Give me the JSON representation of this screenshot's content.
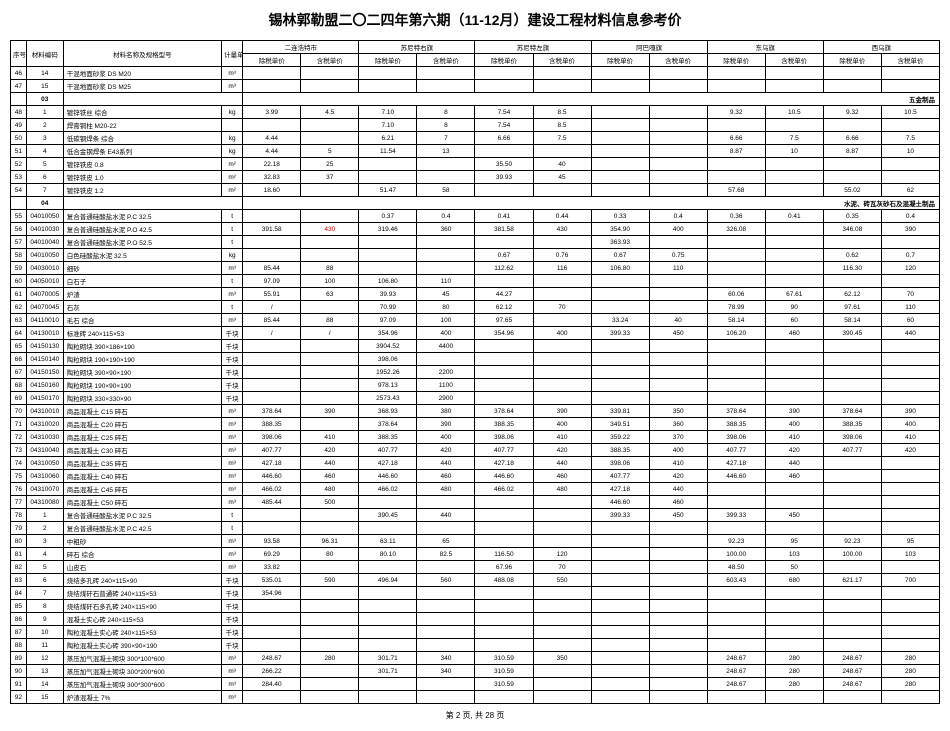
{
  "title": "锡林郭勒盟二〇二四年第六期（11-12月）建设工程材料信息参考价",
  "footer": "第 2 页, 共 28 页",
  "headers": {
    "seq": "序号",
    "code": "材料编码",
    "name": "材料名称及规格型号",
    "unit": "计量单位",
    "regions": [
      "二连浩特市",
      "苏尼特右旗",
      "苏尼特左旗",
      "阿巴嘎旗",
      "东乌旗",
      "西乌旗"
    ],
    "sub": [
      "除税单价",
      "含税单价"
    ]
  },
  "sections": [
    {
      "type": "row",
      "seq": "46",
      "code": "14",
      "name": "干混地面砂浆 DS M20",
      "unit": "m³",
      "v": [
        "",
        "",
        "",
        "",
        "",
        "",
        "",
        "",
        "",
        "",
        "",
        ""
      ]
    },
    {
      "type": "row",
      "seq": "47",
      "code": "15",
      "name": "干混地面砂浆 DS M25",
      "unit": "m³",
      "v": [
        "",
        "",
        "",
        "",
        "",
        "",
        "",
        "",
        "",
        "",
        "",
        ""
      ]
    },
    {
      "type": "section",
      "code": "03",
      "label": "五金制品"
    },
    {
      "type": "row",
      "seq": "48",
      "code": "1",
      "name": "镀锌铁丝 综合",
      "unit": "kg",
      "v": [
        "3.99",
        "4.5",
        "7.10",
        "8",
        "7.54",
        "8.5",
        "",
        "",
        "9.32",
        "10.5",
        "9.32",
        "10.5"
      ]
    },
    {
      "type": "row",
      "seq": "49",
      "code": "2",
      "name": "焊膏铜柱 M20-22",
      "unit": "",
      "v": [
        "",
        "",
        "7.10",
        "8",
        "7.54",
        "8.5",
        "",
        "",
        "",
        "",
        "",
        ""
      ]
    },
    {
      "type": "row",
      "seq": "50",
      "code": "3",
      "name": "低碳钢焊条 综合",
      "unit": "kg",
      "v": [
        "4.44",
        "",
        "6.21",
        "7",
        "6.66",
        "7.5",
        "",
        "",
        "6.66",
        "7.5",
        "6.66",
        "7.5"
      ]
    },
    {
      "type": "row",
      "seq": "51",
      "code": "4",
      "name": "低合金钢焊条 E43系列",
      "unit": "kg",
      "v": [
        "4.44",
        "5",
        "11.54",
        "13",
        "",
        "",
        "",
        "",
        "8.87",
        "10",
        "8.87",
        "10"
      ]
    },
    {
      "type": "row",
      "seq": "52",
      "code": "5",
      "name": "镀锌铁皮 0.8",
      "unit": "m²",
      "v": [
        "22.18",
        "25",
        "",
        "",
        "35.50",
        "40",
        "",
        "",
        "",
        "",
        "",
        ""
      ]
    },
    {
      "type": "row",
      "seq": "53",
      "code": "6",
      "name": "镀锌铁皮 1.0",
      "unit": "m²",
      "v": [
        "32.83",
        "37",
        "",
        "",
        "39.93",
        "45",
        "",
        "",
        "",
        "",
        "",
        ""
      ]
    },
    {
      "type": "row",
      "seq": "54",
      "code": "7",
      "name": "镀锌铁皮 1.2",
      "unit": "m²",
      "v": [
        "18.60",
        "",
        "51.47",
        "58",
        "",
        "",
        "",
        "",
        "57.68",
        "",
        "55.02",
        "62"
      ]
    },
    {
      "type": "section",
      "code": "04",
      "label": "水泥、砖瓦灰砂石及混凝土制品"
    },
    {
      "type": "row",
      "seq": "55",
      "code": "04010050",
      "name": "复合普通硅酸盐水泥 P.C 32.5",
      "unit": "t",
      "v": [
        "",
        "",
        "0.37",
        "0.4",
        "0.41",
        "0.44",
        "0.33",
        "0.4",
        "0.36",
        "0.41",
        "0.35",
        "0.4"
      ]
    },
    {
      "type": "row",
      "seq": "56",
      "code": "04010030",
      "name": "复合普通硅酸盐水泥 P.O 42.5",
      "unit": "t",
      "v": [
        "391.58",
        "430",
        "319.46",
        "360",
        "381.58",
        "430",
        "354.90",
        "400",
        "326.08",
        "",
        "346.08",
        "390",
        "red:1"
      ]
    },
    {
      "type": "row",
      "seq": "57",
      "code": "04010040",
      "name": "复合普通硅酸盐水泥 P.O 52.5",
      "unit": "t",
      "v": [
        "",
        "",
        "",
        "",
        "",
        "",
        "363.93",
        "",
        "",
        "",
        "",
        ""
      ]
    },
    {
      "type": "row",
      "seq": "58",
      "code": "04010050",
      "name": "白色硅酸盐水泥 32.5",
      "unit": "kg",
      "v": [
        "",
        "",
        "",
        "",
        "0.67",
        "0.76",
        "0.67",
        "0.75",
        "",
        "",
        "0.62",
        "0.7"
      ]
    },
    {
      "type": "row",
      "seq": "59",
      "code": "04030010",
      "name": "细砂",
      "unit": "m³",
      "v": [
        "85.44",
        "88",
        "",
        "",
        "112.62",
        "116",
        "106.80",
        "110",
        "",
        "",
        "116.30",
        "120"
      ]
    },
    {
      "type": "row",
      "seq": "60",
      "code": "04050010",
      "name": "白石子",
      "unit": "t",
      "v": [
        "97.09",
        "100",
        "106.80",
        "110",
        "",
        "",
        "",
        "",
        "",
        "",
        "",
        ""
      ]
    },
    {
      "type": "row",
      "seq": "61",
      "code": "04070005",
      "name": "炉渣",
      "unit": "m³",
      "v": [
        "55.91",
        "63",
        "39.93",
        "45",
        "44.27",
        "",
        "",
        "",
        "60.06",
        "67.61",
        "62.12",
        "70"
      ]
    },
    {
      "type": "row",
      "seq": "62",
      "code": "04070045",
      "name": "石灰",
      "unit": "t",
      "v": [
        "/",
        "",
        "70.99",
        "80",
        "62.12",
        "70",
        "",
        "",
        "78.99",
        "90",
        "97.61",
        "110"
      ]
    },
    {
      "type": "row",
      "seq": "63",
      "code": "04110010",
      "name": "毛石 综合",
      "unit": "m³",
      "v": [
        "85.44",
        "88",
        "97.09",
        "100",
        "97.65",
        "",
        "33.24",
        "40",
        "58.14",
        "60",
        "58.14",
        "60"
      ]
    },
    {
      "type": "row",
      "seq": "64",
      "code": "04130010",
      "name": "标准砖 240×115×53",
      "unit": "千块",
      "v": [
        "/",
        "/",
        "354.96",
        "400",
        "354.96",
        "400",
        "399.33",
        "450",
        "106.20",
        "460",
        "390.45",
        "440"
      ]
    },
    {
      "type": "row",
      "seq": "65",
      "code": "04150130",
      "name": "陶粒砌块 390×186×190",
      "unit": "千块",
      "v": [
        "",
        "",
        "3904.52",
        "4400",
        "",
        "",
        "",
        "",
        "",
        "",
        "",
        ""
      ]
    },
    {
      "type": "row",
      "seq": "66",
      "code": "04150140",
      "name": "陶粒砌块 190×190×190",
      "unit": "千块",
      "v": [
        "",
        "",
        "398.06",
        "",
        "",
        "",
        "",
        "",
        "",
        "",
        "",
        ""
      ]
    },
    {
      "type": "row",
      "seq": "67",
      "code": "04150150",
      "name": "陶粒砌块 390×90×190",
      "unit": "千块",
      "v": [
        "",
        "",
        "1952.26",
        "2200",
        "",
        "",
        "",
        "",
        "",
        "",
        "",
        ""
      ]
    },
    {
      "type": "row",
      "seq": "68",
      "code": "04150160",
      "name": "陶粒砌块 190×90×190",
      "unit": "千块",
      "v": [
        "",
        "",
        "978.13",
        "1100",
        "",
        "",
        "",
        "",
        "",
        "",
        "",
        ""
      ]
    },
    {
      "type": "row",
      "seq": "69",
      "code": "04150170",
      "name": "陶粒砌块 330×330×90",
      "unit": "千块",
      "v": [
        "",
        "",
        "2573.43",
        "2900",
        "",
        "",
        "",
        "",
        "",
        "",
        "",
        ""
      ]
    },
    {
      "type": "row",
      "seq": "70",
      "code": "04310010",
      "name": "商品混凝土 C15 碎石",
      "unit": "m³",
      "v": [
        "378.64",
        "390",
        "368.93",
        "380",
        "378.64",
        "390",
        "339.81",
        "350",
        "378.64",
        "390",
        "378.64",
        "390"
      ]
    },
    {
      "type": "row",
      "seq": "71",
      "code": "04310020",
      "name": "商品混凝土 C20 碎石",
      "unit": "m³",
      "v": [
        "388.35",
        "",
        "378.64",
        "390",
        "388.35",
        "400",
        "349.51",
        "360",
        "388.35",
        "400",
        "388.35",
        "400"
      ]
    },
    {
      "type": "row",
      "seq": "72",
      "code": "04310030",
      "name": "商品混凝土 C25 碎石",
      "unit": "m³",
      "v": [
        "398.06",
        "410",
        "388.35",
        "400",
        "398.06",
        "410",
        "359.22",
        "370",
        "398.06",
        "410",
        "398.06",
        "410"
      ]
    },
    {
      "type": "row",
      "seq": "73",
      "code": "04310040",
      "name": "商品混凝土 C30 碎石",
      "unit": "m³",
      "v": [
        "407.77",
        "420",
        "407.77",
        "420",
        "407.77",
        "420",
        "388.35",
        "400",
        "407.77",
        "420",
        "407.77",
        "420"
      ]
    },
    {
      "type": "row",
      "seq": "74",
      "code": "04310050",
      "name": "商品混凝土 C35 碎石",
      "unit": "m³",
      "v": [
        "427.18",
        "440",
        "427.18",
        "440",
        "427.18",
        "440",
        "398.06",
        "410",
        "427.18",
        "440",
        "",
        ""
      ]
    },
    {
      "type": "row",
      "seq": "75",
      "code": "04310060",
      "name": "商品混凝土 C40 碎石",
      "unit": "m³",
      "v": [
        "446.60",
        "460",
        "446.60",
        "460",
        "446.60",
        "460",
        "407.77",
        "420",
        "446.60",
        "460",
        "",
        ""
      ]
    },
    {
      "type": "row",
      "seq": "76",
      "code": "04310070",
      "name": "商品混凝土 C45 碎石",
      "unit": "m³",
      "v": [
        "466.02",
        "480",
        "466.02",
        "480",
        "466.02",
        "480",
        "427.18",
        "440",
        "",
        "",
        "",
        ""
      ]
    },
    {
      "type": "row",
      "seq": "77",
      "code": "04310080",
      "name": "商品混凝土 C50 碎石",
      "unit": "m³",
      "v": [
        "485.44",
        "500",
        "",
        "",
        "",
        "",
        "446.60",
        "460",
        "",
        "",
        "",
        ""
      ]
    },
    {
      "type": "row",
      "seq": "78",
      "code": "1",
      "name": "复合普通硅酸盐水泥 P.C 32.5",
      "unit": "t",
      "v": [
        "",
        "",
        "390.45",
        "440",
        "",
        "",
        "399.33",
        "450",
        "399.33",
        "450",
        "",
        ""
      ]
    },
    {
      "type": "row",
      "seq": "79",
      "code": "2",
      "name": "复合普通硅酸盐水泥 P.C 42.5",
      "unit": "t",
      "v": [
        "",
        "",
        "",
        "",
        "",
        "",
        "",
        "",
        "",
        "",
        "",
        ""
      ]
    },
    {
      "type": "row",
      "seq": "80",
      "code": "3",
      "name": "中粗砂",
      "unit": "m³",
      "v": [
        "93.58",
        "96.31",
        "63.11",
        "65",
        "",
        "",
        "",
        "",
        "92.23",
        "95",
        "92.23",
        "95"
      ]
    },
    {
      "type": "row",
      "seq": "81",
      "code": "4",
      "name": "碎石 综合",
      "unit": "m³",
      "v": [
        "69.29",
        "80",
        "80.10",
        "82.5",
        "116.50",
        "120",
        "",
        "",
        "100.00",
        "103",
        "100.00",
        "103"
      ]
    },
    {
      "type": "row",
      "seq": "82",
      "code": "5",
      "name": "山皮石",
      "unit": "m³",
      "v": [
        "33.82",
        "",
        "",
        "",
        "67.96",
        "70",
        "",
        "",
        "48.50",
        "50",
        "",
        ""
      ]
    },
    {
      "type": "row",
      "seq": "83",
      "code": "6",
      "name": "烧结多孔砖 240×115×90",
      "unit": "千块",
      "v": [
        "535.01",
        "590",
        "496.94",
        "560",
        "488.08",
        "550",
        "",
        "",
        "603.43",
        "680",
        "621.17",
        "700"
      ]
    },
    {
      "type": "row",
      "seq": "84",
      "code": "7",
      "name": "烧结煤矸石普通砖 240×115×53",
      "unit": "千块",
      "v": [
        "354.96",
        "",
        "",
        "",
        "",
        "",
        "",
        "",
        "",
        "",
        "",
        ""
      ]
    },
    {
      "type": "row",
      "seq": "85",
      "code": "8",
      "name": "烧结煤矸石多孔砖 240×115×90",
      "unit": "千块",
      "v": [
        "",
        "",
        "",
        "",
        "",
        "",
        "",
        "",
        "",
        "",
        "",
        ""
      ]
    },
    {
      "type": "row",
      "seq": "86",
      "code": "9",
      "name": "混凝土实心砖 240×115×53",
      "unit": "千块",
      "v": [
        "",
        "",
        "",
        "",
        "",
        "",
        "",
        "",
        "",
        "",
        "",
        ""
      ]
    },
    {
      "type": "row",
      "seq": "87",
      "code": "10",
      "name": "陶粒混凝土实心砖 240×115×53",
      "unit": "千块",
      "v": [
        "",
        "",
        "",
        "",
        "",
        "",
        "",
        "",
        "",
        "",
        "",
        ""
      ]
    },
    {
      "type": "row",
      "seq": "88",
      "code": "11",
      "name": "陶粒混凝土实心砖 390×90×190",
      "unit": "千块",
      "v": [
        "",
        "",
        "",
        "",
        "",
        "",
        "",
        "",
        "",
        "",
        "",
        ""
      ]
    },
    {
      "type": "row",
      "seq": "89",
      "code": "12",
      "name": "蒸压加气混凝土砌块 300*100*600",
      "unit": "m³",
      "v": [
        "248.67",
        "280",
        "301.71",
        "340",
        "310.59",
        "350",
        "",
        "",
        "248.67",
        "280",
        "248.67",
        "280"
      ]
    },
    {
      "type": "row",
      "seq": "90",
      "code": "13",
      "name": "蒸压加气混凝土砌块 300*200*600",
      "unit": "m³",
      "v": [
        "266.22",
        "",
        "301.71",
        "340",
        "310.59",
        "",
        "",
        "",
        "248.67",
        "280",
        "248.67",
        "280"
      ]
    },
    {
      "type": "row",
      "seq": "91",
      "code": "14",
      "name": "蒸压加气混凝土砌块 300*300*600",
      "unit": "m³",
      "v": [
        "284.40",
        "",
        "",
        "",
        "310.59",
        "",
        "",
        "",
        "248.67",
        "280",
        "248.67",
        "280"
      ]
    },
    {
      "type": "row",
      "seq": "92",
      "code": "15",
      "name": "炉渣混凝土 7%",
      "unit": "m³",
      "v": [
        "",
        "",
        "",
        "",
        "",
        "",
        "",
        "",
        "",
        "",
        "",
        ""
      ]
    }
  ]
}
